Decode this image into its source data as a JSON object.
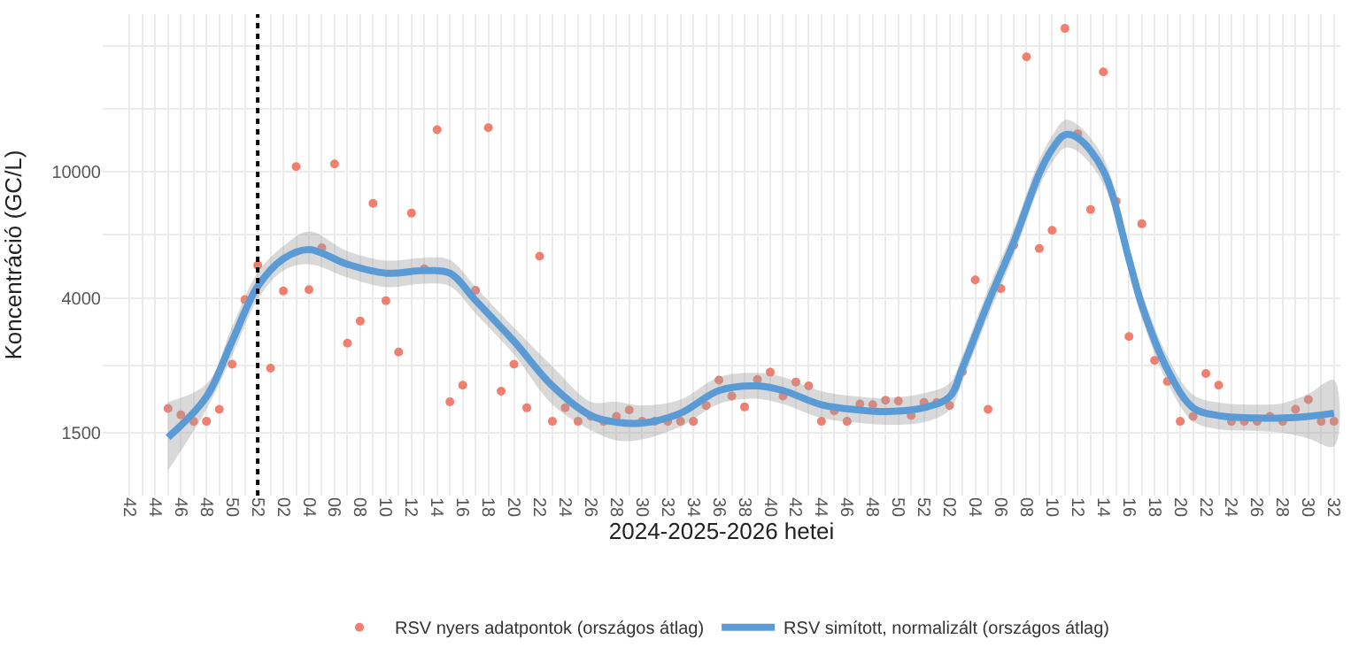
{
  "chart_data": {
    "type": "scatter",
    "xlabel": "2024-2025-2026 hetei",
    "ylabel": "Koncentráció (GC/L)",
    "log": "y",
    "grid": true,
    "legend": "bottom",
    "categories": [
      "42",
      null,
      "44",
      null,
      "46",
      null,
      "48",
      null,
      "50",
      null,
      "52",
      null,
      "02",
      null,
      "04",
      null,
      "06",
      null,
      "08",
      null,
      "10",
      null,
      "12",
      null,
      "14",
      null,
      "16",
      null,
      "18",
      null,
      "20",
      null,
      "22",
      null,
      "24",
      null,
      "26",
      null,
      "28",
      null,
      "30",
      null,
      "32",
      null,
      "34",
      null,
      "36",
      null,
      "38",
      null,
      "40",
      null,
      "42",
      null,
      "44",
      null,
      "46",
      null,
      "48",
      null,
      "50",
      null,
      "52",
      null,
      "02",
      null,
      "04",
      null,
      "06",
      null,
      "08",
      null,
      "10",
      null,
      "12",
      null,
      "14",
      null,
      "16",
      null,
      "18",
      null,
      "20",
      null,
      "22",
      null,
      "24",
      null,
      "26",
      null,
      "28",
      null,
      "30",
      null,
      "32"
    ],
    "ylim": [
      950,
      31500
    ],
    "yticks": [
      1500,
      {
        "value": 2449,
        "label": null
      },
      4000,
      {
        "value": 6325,
        "label": null
      },
      10000,
      {
        "value": 15811,
        "label": null
      },
      {
        "value": 25000,
        "label": null
      }
    ],
    "ref_lines": [
      {
        "axis": "x",
        "value": "52",
        "color": "#000000",
        "line_style": "dotted"
      }
    ],
    "series": [
      {
        "name": "RSV nyers adatpontok (országos átlag)",
        "marker": "circle",
        "color": "#f07f6f",
        "values": [
          null,
          null,
          null,
          1790,
          1710,
          1630,
          1630,
          1780,
          2470,
          3950,
          5070,
          2400,
          4210,
          10400,
          4250,
          5760,
          10600,
          2880,
          3380,
          7960,
          3920,
          2700,
          7410,
          4940,
          13600,
          1880,
          2120,
          4230,
          13800,
          2030,
          2470,
          1800,
          5420,
          1630,
          1800,
          1630,
          1690,
          1630,
          1690,
          1770,
          1630,
          1630,
          1630,
          1630,
          1630,
          1830,
          2200,
          1960,
          1810,
          2210,
          2330,
          1960,
          2170,
          2110,
          1630,
          1760,
          1630,
          1850,
          1840,
          1900,
          1890,
          1700,
          1870,
          1870,
          1830,
          2340,
          4560,
          1780,
          4280,
          5870,
          23100,
          5730,
          6540,
          28400,
          13200,
          7610,
          20700,
          8080,
          3020,
          6860,
          2540,
          2180,
          1630,
          1690,
          2310,
          2120,
          1630,
          1630,
          1630,
          1690,
          1630,
          1780,
          1910,
          1630,
          1630
        ]
      },
      {
        "name": "RSV simított, normalizált (országos átlag)",
        "type": "line",
        "marker": "none",
        "line_style": "solid",
        "color": "#5b9bd5",
        "values": [
          null,
          null,
          null,
          1450,
          null,
          null,
          1950,
          null,
          2920,
          null,
          4350,
          null,
          5320,
          null,
          5690,
          null,
          null,
          5110,
          null,
          null,
          4790,
          null,
          null,
          4880,
          null,
          4790,
          null,
          3930,
          null,
          null,
          2920,
          null,
          null,
          2110,
          null,
          null,
          1700,
          null,
          1620,
          null,
          1610,
          null,
          null,
          1730,
          null,
          null,
          2040,
          null,
          null,
          2110,
          null,
          2040,
          null,
          null,
          1840,
          null,
          null,
          1770,
          null,
          1750,
          null,
          null,
          1800,
          null,
          1950,
          2400,
          null,
          3860,
          null,
          5990,
          null,
          9880,
          11800,
          13100,
          12800,
          null,
          10100,
          null,
          5300,
          3800,
          null,
          2380,
          null,
          1800,
          null,
          1700,
          null,
          null,
          1670,
          null,
          1670,
          null,
          1690,
          null,
          1730
        ],
        "lower": [
          null,
          null,
          null,
          1140,
          null,
          null,
          1780,
          null,
          2630,
          null,
          3960,
          null,
          4880,
          null,
          5110,
          null,
          null,
          4640,
          null,
          null,
          4330,
          null,
          null,
          4440,
          null,
          4350,
          null,
          3570,
          null,
          null,
          2650,
          null,
          null,
          1840,
          null,
          null,
          1530,
          null,
          1420,
          null,
          1430,
          null,
          null,
          1570,
          null,
          null,
          1850,
          null,
          null,
          1920,
          null,
          1850,
          null,
          null,
          1670,
          null,
          null,
          1610,
          null,
          1590,
          null,
          null,
          1620,
          null,
          1770,
          2180,
          null,
          3500,
          null,
          5440,
          null,
          8970,
          10700,
          11900,
          11600,
          null,
          9170,
          null,
          4810,
          3450,
          null,
          2160,
          null,
          1630,
          null,
          1540,
          null,
          null,
          1520,
          null,
          1500,
          null,
          1440,
          null,
          1360
        ],
        "upper": [
          null,
          null,
          null,
          1880,
          null,
          null,
          2140,
          null,
          3240,
          null,
          4810,
          null,
          5830,
          null,
          6490,
          null,
          null,
          5620,
          null,
          null,
          5250,
          null,
          null,
          5360,
          null,
          5270,
          null,
          4330,
          null,
          null,
          3220,
          null,
          null,
          2430,
          null,
          null,
          1880,
          null,
          1880,
          null,
          1830,
          null,
          null,
          1910,
          null,
          null,
          2250,
          null,
          null,
          2320,
          null,
          2250,
          null,
          null,
          2030,
          null,
          null,
          1950,
          null,
          1930,
          null,
          null,
          2000,
          null,
          2150,
          2640,
          null,
          4250,
          null,
          6600,
          null,
          10900,
          13000,
          14600,
          14100,
          null,
          11100,
          null,
          5840,
          4190,
          null,
          2620,
          null,
          1980,
          null,
          1870,
          null,
          null,
          1840,
          null,
          1860,
          null,
          1990,
          null,
          2200
        ]
      }
    ]
  }
}
